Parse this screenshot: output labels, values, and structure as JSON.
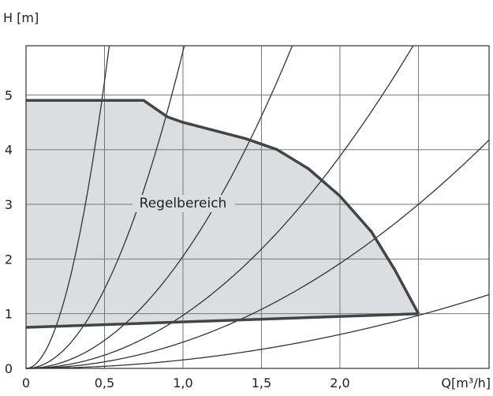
{
  "chart_data": {
    "type": "line",
    "title": "",
    "xlabel": "Q[m³/h]",
    "ylabel": "H [m]",
    "xlim": [
      0,
      2.95
    ],
    "ylim": [
      0,
      5.9
    ],
    "x_ticks": [
      {
        "value": 0,
        "label": "0"
      },
      {
        "value": 0.5,
        "label": "0,5"
      },
      {
        "value": 1.0,
        "label": "1,0"
      },
      {
        "value": 1.5,
        "label": "1,5"
      },
      {
        "value": 2.0,
        "label": "2,0"
      }
    ],
    "x_gridlines": [
      0.5,
      1.0,
      1.5,
      2.0,
      2.5
    ],
    "y_ticks": [
      0,
      1,
      2,
      3,
      4,
      5
    ],
    "grid": true,
    "region": {
      "label": "Regelbereich",
      "fill_color": "#dcdde0",
      "outline_color": "#444444",
      "upper_boundary": [
        {
          "x": 0,
          "y": 4.9
        },
        {
          "x": 0.75,
          "y": 4.9
        },
        {
          "x": 0.8,
          "y": 4.8
        },
        {
          "x": 0.9,
          "y": 4.6
        },
        {
          "x": 1.0,
          "y": 4.5
        },
        {
          "x": 1.2,
          "y": 4.35
        },
        {
          "x": 1.4,
          "y": 4.2
        },
        {
          "x": 1.6,
          "y": 4.0
        },
        {
          "x": 1.8,
          "y": 3.65
        },
        {
          "x": 2.0,
          "y": 3.15
        },
        {
          "x": 2.2,
          "y": 2.5
        },
        {
          "x": 2.35,
          "y": 1.8
        },
        {
          "x": 2.5,
          "y": 1.0
        }
      ],
      "lower_boundary": [
        {
          "x": 0,
          "y": 0.75
        },
        {
          "x": 2.5,
          "y": 1.0
        }
      ]
    },
    "system_curves": [
      {
        "k": 21.0
      },
      {
        "k": 5.8
      },
      {
        "k": 2.05
      },
      {
        "k": 0.97
      },
      {
        "k": 0.48
      },
      {
        "k": 0.155
      }
    ],
    "colors": {
      "curve": "#333333",
      "boundary": "#444444",
      "grid": "#777777",
      "frame": "#333333"
    }
  }
}
